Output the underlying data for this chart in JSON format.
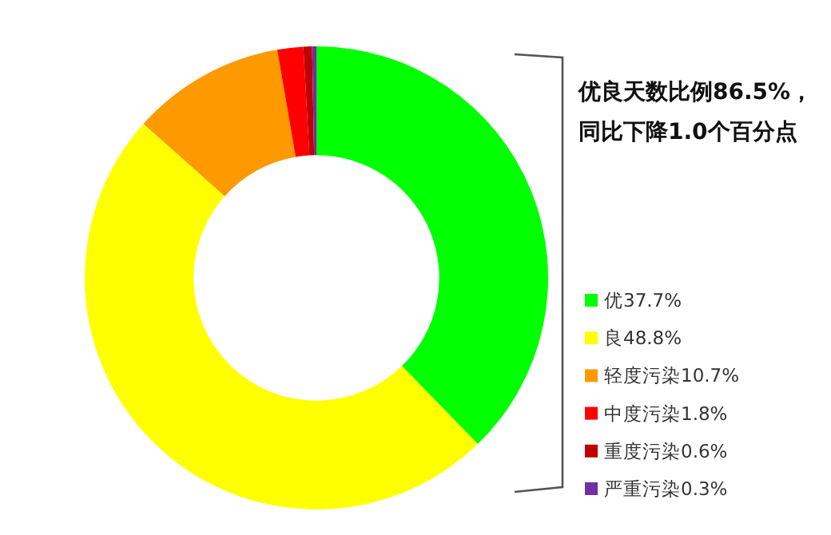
{
  "chart_data": {
    "type": "donut",
    "categories": [
      "优37.7%",
      "良48.8%",
      "轻度污染10.7%",
      "中度污染1.8%",
      "重度污染0.6%",
      "严重污染0.3%"
    ],
    "values": [
      37.7,
      48.8,
      10.7,
      1.8,
      0.6,
      0.3
    ],
    "colors": [
      "#00ff00",
      "#ffff00",
      "#ff9900",
      "#ff0000",
      "#c00000",
      "#7030a0"
    ],
    "legend": "right",
    "annotations": [
      "优良天数比例86.5%，",
      "同比下降1.0个百分点"
    ]
  }
}
